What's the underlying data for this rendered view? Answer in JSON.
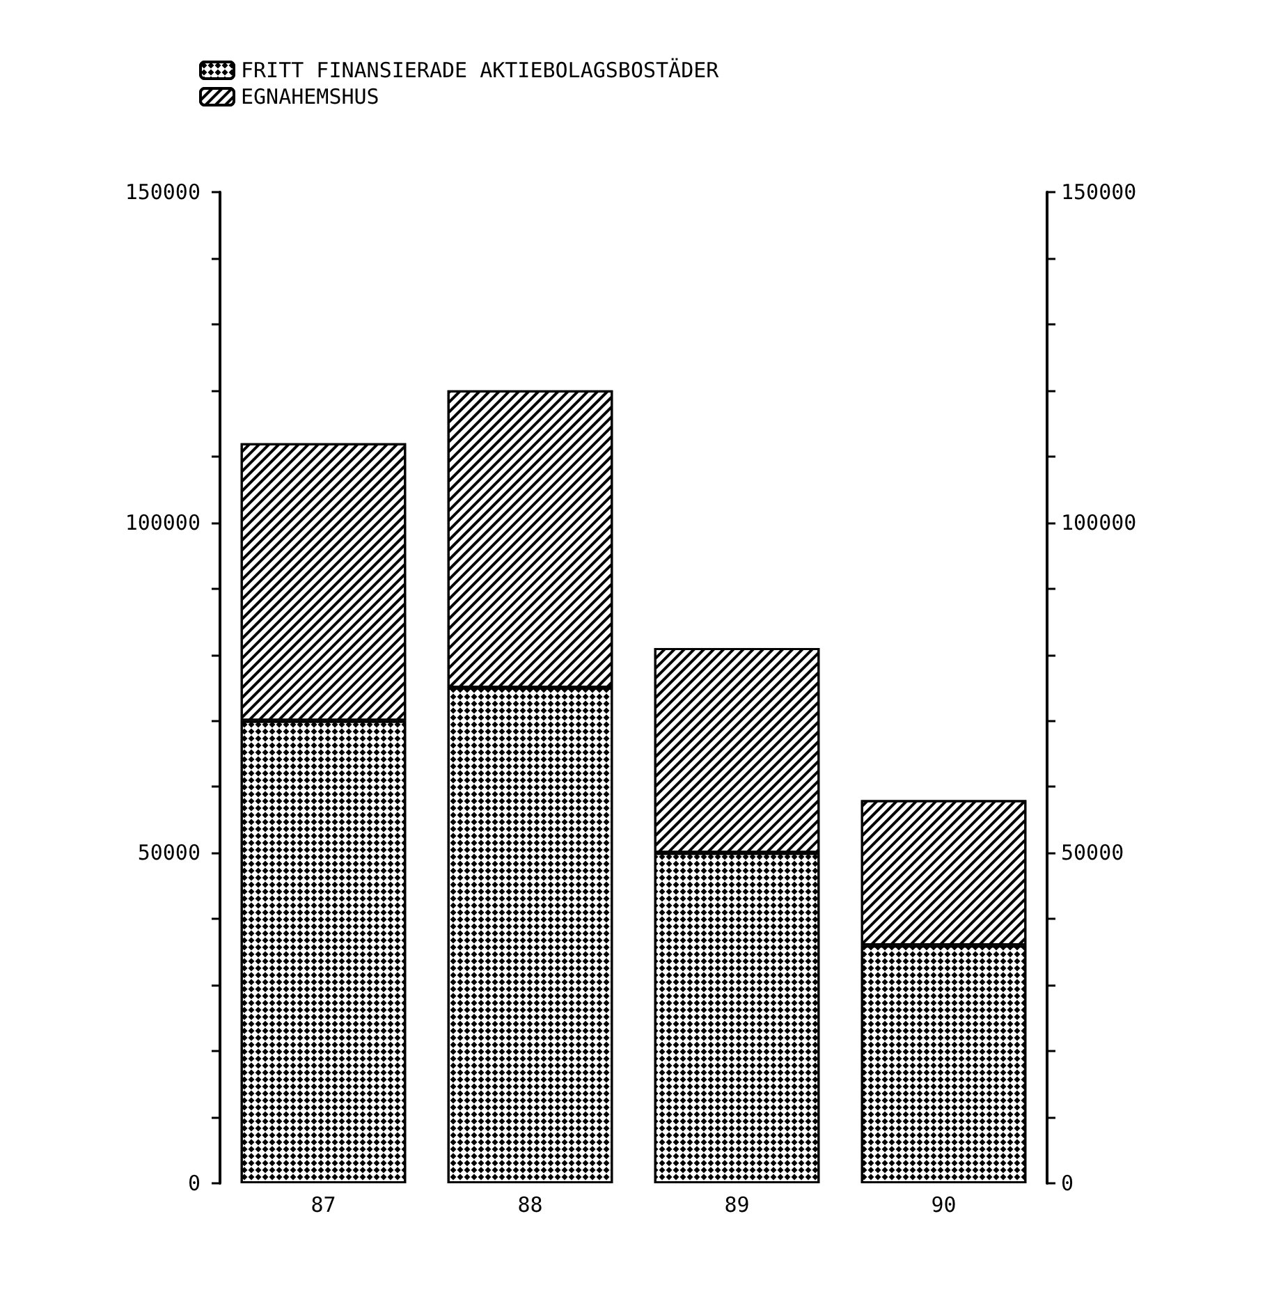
{
  "chart_data": {
    "type": "bar",
    "stacked": true,
    "categories": [
      "87",
      "88",
      "89",
      "90"
    ],
    "series": [
      {
        "name": "FRITT FINANSIERADE AKTIEBOLAGSBOSTÄDER",
        "color": "#ffffff",
        "values": [
          70000,
          75000,
          50000,
          36000
        ]
      },
      {
        "name": "EGNAHEMSHUS",
        "color": "#ffffff",
        "values": [
          42000,
          45000,
          31000,
          22000
        ]
      }
    ],
    "ylim": [
      0,
      150000
    ],
    "yticks": [
      0,
      {
        "value": 10000,
        "label": null
      },
      {
        "value": 20000,
        "label": null
      },
      {
        "value": 30000,
        "label": null
      },
      {
        "value": 40000,
        "label": null
      },
      50000,
      {
        "value": 60000,
        "label": null
      },
      {
        "value": 70000,
        "label": null
      },
      {
        "value": 80000,
        "label": null
      },
      {
        "value": 90000,
        "label": null
      },
      100000,
      {
        "value": 110000,
        "label": null
      },
      {
        "value": 120000,
        "label": null
      },
      {
        "value": 130000,
        "label": null
      },
      {
        "value": 140000,
        "label": null
      },
      150000
    ],
    "y2lim": [
      0,
      150000
    ],
    "y2ticks": [
      0,
      {
        "value": 10000,
        "label": null
      },
      {
        "value": 20000,
        "label": null
      },
      {
        "value": 30000,
        "label": null
      },
      {
        "value": 40000,
        "label": null
      },
      50000,
      {
        "value": 60000,
        "label": null
      },
      {
        "value": 70000,
        "label": null
      },
      {
        "value": 80000,
        "label": null
      },
      {
        "value": 90000,
        "label": null
      },
      100000,
      {
        "value": 110000,
        "label": null
      },
      {
        "value": 120000,
        "label": null
      },
      {
        "value": 130000,
        "label": null
      },
      {
        "value": 140000,
        "label": null
      },
      150000
    ],
    "grid": false,
    "legend": "top left"
  }
}
